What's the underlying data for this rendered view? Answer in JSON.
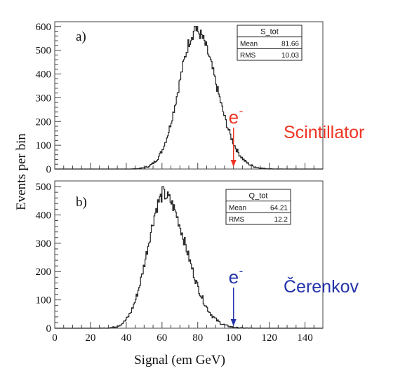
{
  "ylabel": "Events per bin",
  "xlabel": "Signal (em GeV)",
  "xlim": [
    0,
    150
  ],
  "xticks": [
    0,
    20,
    40,
    60,
    80,
    100,
    120,
    140
  ],
  "colors": {
    "scintillator": "#ee3322",
    "cerenkov": "#2233aa",
    "hist": "#222222"
  },
  "chart_data": [
    {
      "type": "histogram",
      "panel": "a)",
      "ylim": [
        0,
        620
      ],
      "yticks": [
        0,
        100,
        200,
        300,
        400,
        500,
        600
      ],
      "bin_width": 0.5,
      "stats": {
        "title": "S_tot",
        "mean_label": "Mean",
        "mean": "81.66",
        "rms_label": "RMS",
        "rms": "10.03"
      },
      "peak": {
        "mean": 79,
        "sigma_left": 9.5,
        "sigma_right": 11.5,
        "max": 580,
        "spike": [
          78.5,
          600
        ]
      },
      "electron_marker": {
        "label": "e",
        "sup": "-",
        "x": 100
      },
      "detector_label": "Scintillator"
    },
    {
      "type": "histogram",
      "panel": "b)",
      "ylim": [
        0,
        520
      ],
      "yticks": [
        0,
        100,
        200,
        300,
        400,
        500
      ],
      "bin_width": 0.5,
      "stats": {
        "title": "Q_tot",
        "mean_label": "Mean",
        "mean": "64.21",
        "rms_label": "RMS",
        "rms": "12.2"
      },
      "peak": {
        "mean": 61,
        "sigma_left": 9,
        "sigma_right": 12.5,
        "max": 470,
        "spike": [
          60.5,
          500
        ]
      },
      "electron_marker": {
        "label": "e",
        "sup": "-",
        "x": 100
      },
      "detector_label": "Čerenkov"
    }
  ]
}
